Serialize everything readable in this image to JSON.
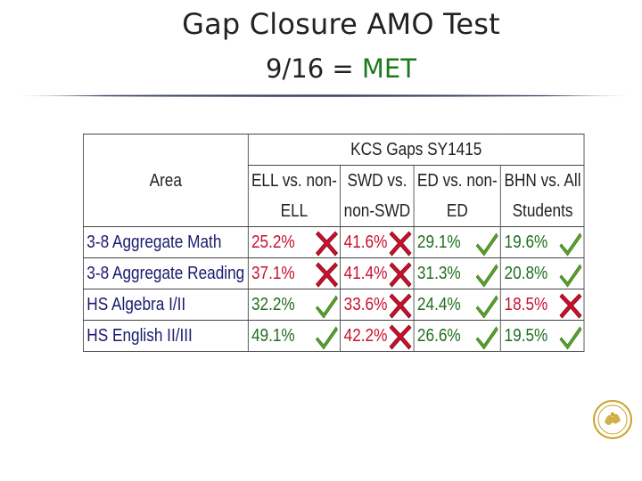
{
  "slide": {
    "title": "Gap Closure AMO Test",
    "result_fraction": "9/16 =",
    "result_status": "MET"
  },
  "table": {
    "group_header": "KCS Gaps SY1415",
    "area_header": "Area",
    "columns": [
      {
        "line1": "ELL vs. non-",
        "line2": "ELL"
      },
      {
        "line1": "SWD vs.",
        "line2": "non-SWD"
      },
      {
        "line1": "ED vs. non-",
        "line2": "ED"
      },
      {
        "line1": "BHN vs. All",
        "line2": "Students"
      }
    ],
    "rows": [
      {
        "area": "3-8 Aggregate Math",
        "cells": [
          {
            "value": "25.2%",
            "met": false
          },
          {
            "value": "41.6%",
            "met": false
          },
          {
            "value": "29.1%",
            "met": true
          },
          {
            "value": "19.6%",
            "met": true
          }
        ]
      },
      {
        "area": "3-8 Aggregate Reading",
        "cells": [
          {
            "value": "37.1%",
            "met": false
          },
          {
            "value": "41.4%",
            "met": false
          },
          {
            "value": "31.3%",
            "met": true
          },
          {
            "value": "20.8%",
            "met": true
          }
        ]
      },
      {
        "area": "HS Algebra I/II",
        "cells": [
          {
            "value": "32.2%",
            "met": true
          },
          {
            "value": "33.6%",
            "met": false
          },
          {
            "value": "24.4%",
            "met": true
          },
          {
            "value": "18.5%",
            "met": false
          }
        ]
      },
      {
        "area": "HS English II/III",
        "cells": [
          {
            "value": "49.1%",
            "met": true
          },
          {
            "value": "42.2%",
            "met": false
          },
          {
            "value": "26.6%",
            "met": true
          },
          {
            "value": "19.5%",
            "met": true
          }
        ]
      }
    ]
  },
  "icons": {
    "met": "checkmark-icon",
    "not_met": "x-mark-icon",
    "logo": "district-seal-icon"
  },
  "colors": {
    "met_text": "#1f6f1f",
    "not_met_text": "#c8102e",
    "check_green": "#5aa02c",
    "x_red": "#c8102e",
    "status_met": "#1f7a1f"
  }
}
